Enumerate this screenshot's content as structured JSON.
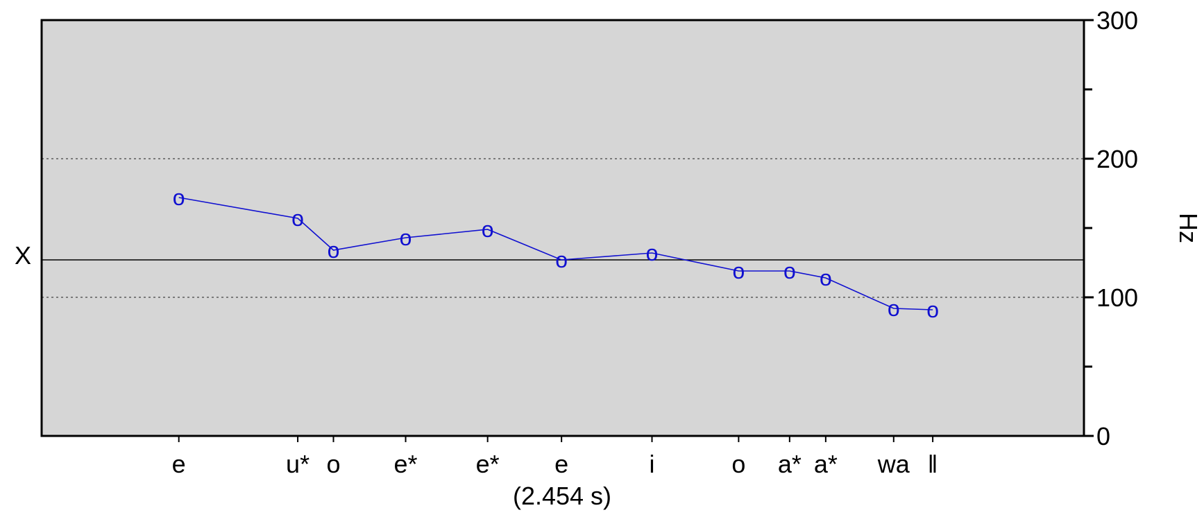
{
  "chart_data": {
    "type": "line",
    "duration_label": "(2.454 s)",
    "reference_label": "X",
    "ylabel": "Hz",
    "ylim": [
      0,
      300
    ],
    "yticks": [
      0,
      100,
      200,
      300
    ],
    "y_minor_ticks": [
      50,
      150,
      250
    ],
    "dotted_gridlines": [
      100,
      200
    ],
    "reference_line": 127,
    "x_range": [
      0,
      2.454
    ],
    "marker_symbol": "o",
    "colors": {
      "series": "#1010d0",
      "plot_bg": "#d6d6d6",
      "axis": "#000000"
    },
    "categories": [
      "e",
      "u*",
      "o",
      "e*",
      "e*",
      "e",
      "i",
      "o",
      "a*",
      "a*",
      "wa",
      "ǁ"
    ],
    "x": [
      0.323,
      0.603,
      0.687,
      0.857,
      1.05,
      1.224,
      1.437,
      1.641,
      1.761,
      1.846,
      2.006,
      2.098
    ],
    "values": [
      172,
      157,
      134,
      143,
      149,
      127,
      132,
      119,
      119,
      114,
      92,
      91
    ]
  }
}
